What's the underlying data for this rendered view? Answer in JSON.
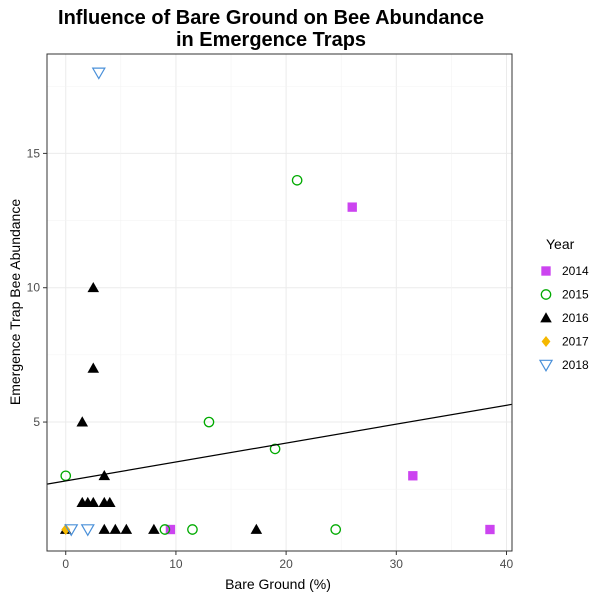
{
  "chart_data": {
    "type": "scatter",
    "title_lines": [
      "Influence of Bare Ground on Bee Abundance",
      "in Emergence Traps"
    ],
    "xlabel": "Bare Ground (%)",
    "ylabel": "Emergence Trap Bee Abundance",
    "xlim": [
      -1.7,
      40.5
    ],
    "ylim": [
      0.2,
      18.7
    ],
    "x_ticks": [
      0,
      10,
      20,
      30,
      40
    ],
    "y_ticks": [
      5,
      10,
      15
    ],
    "grid": true,
    "legend_title": "Year",
    "legend_position": "right",
    "series": [
      {
        "name": "2014",
        "marker": "square",
        "color": "#CC44F0",
        "points": [
          [
            9.5,
            1
          ],
          [
            26,
            13
          ],
          [
            31.5,
            3
          ],
          [
            38.5,
            1
          ]
        ]
      },
      {
        "name": "2015",
        "marker": "circle",
        "color": "#00AA00",
        "points": [
          [
            0,
            3
          ],
          [
            9,
            1
          ],
          [
            11.5,
            1
          ],
          [
            13,
            5
          ],
          [
            19,
            4
          ],
          [
            21,
            14
          ],
          [
            24.5,
            1
          ]
        ]
      },
      {
        "name": "2016",
        "marker": "triangle",
        "color": "#000000",
        "points": [
          [
            0,
            1
          ],
          [
            1.5,
            2
          ],
          [
            1.5,
            5
          ],
          [
            2,
            2
          ],
          [
            2.5,
            2
          ],
          [
            2.5,
            7
          ],
          [
            2.5,
            10
          ],
          [
            3.5,
            1
          ],
          [
            3.5,
            3
          ],
          [
            3.5,
            2
          ],
          [
            4,
            2
          ],
          [
            4.5,
            1
          ],
          [
            5.5,
            1
          ],
          [
            8,
            1
          ],
          [
            17.3,
            1
          ]
        ]
      },
      {
        "name": "2017",
        "marker": "diamond",
        "color": "#F5B800",
        "points": [
          [
            0,
            1
          ]
        ]
      },
      {
        "name": "2018",
        "marker": "triangle-down",
        "color": "#4A90D9",
        "points": [
          [
            0.5,
            1
          ],
          [
            2,
            1
          ],
          [
            3,
            18
          ]
        ]
      }
    ],
    "trend_line": {
      "x": [
        -1.7,
        40.5
      ],
      "y": [
        2.69,
        5.66
      ]
    }
  }
}
